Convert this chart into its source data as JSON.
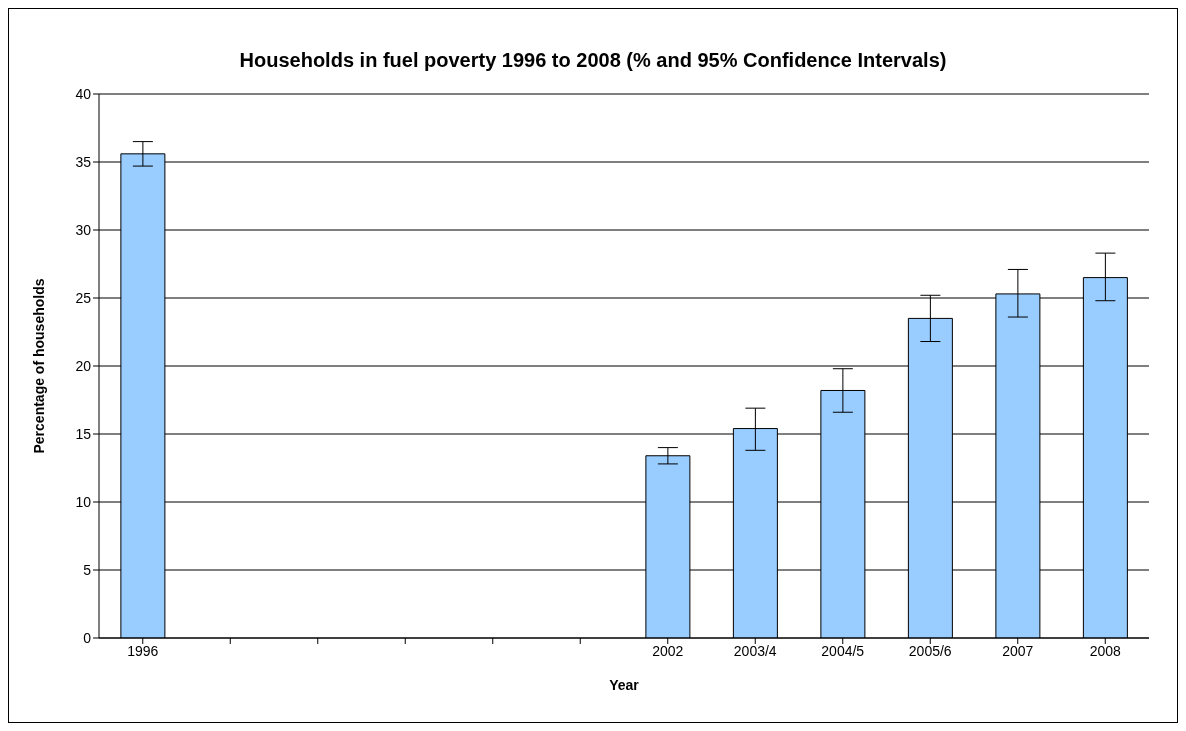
{
  "chart_data": {
    "type": "bar",
    "title": "Households in fuel poverty 1996 to 2008 (% and 95% Confidence Intervals)",
    "xlabel": "Year",
    "ylabel": "Percentage of households",
    "categories": [
      "1996",
      null,
      null,
      null,
      null,
      null,
      "2002",
      "2003/4",
      "2004/5",
      "2005/6",
      "2007",
      "2008"
    ],
    "values": [
      35.6,
      null,
      null,
      null,
      null,
      null,
      13.4,
      15.4,
      18.2,
      23.5,
      25.3,
      26.5
    ],
    "errors": [
      [
        34.7,
        36.5
      ],
      null,
      null,
      null,
      null,
      null,
      [
        12.8,
        14.0
      ],
      [
        13.8,
        16.9
      ],
      [
        16.6,
        19.8
      ],
      [
        21.8,
        25.2
      ],
      [
        23.6,
        27.1
      ],
      [
        24.8,
        28.3
      ]
    ],
    "color": "#99ccff",
    "ylim": [
      0,
      40
    ],
    "yticks": [
      0,
      5,
      10,
      15,
      20,
      25,
      30,
      35,
      40
    ],
    "grid": "y"
  }
}
